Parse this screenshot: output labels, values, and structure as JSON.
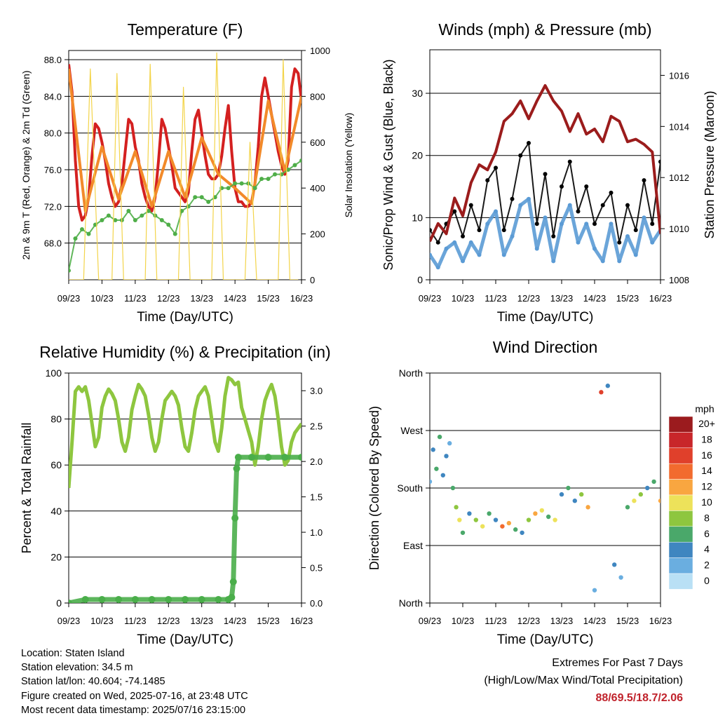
{
  "footer": {
    "location": "Location: Staten Island",
    "elevation": "Station elevation: 34.5 m",
    "latlon": "Station lat/lon: 40.604; -74.1485",
    "created": "Figure created on Wed, 2025-07-16, at 23:48 UTC",
    "recent": "Most recent data timestamp: 2025/07/16 23:15:00"
  },
  "extremes": {
    "line1": "Extremes For Past 7 Days",
    "line2": "(High/Low/Max Wind/Total Precipitation)",
    "values": "88/69.5/18.7/2.06",
    "color": "#c0222b"
  },
  "chart_data": [
    {
      "type": "line",
      "title": "Temperature (F)",
      "xlabel": "Time (Day/UTC)",
      "ylabel": "2m & 9m T (Red, Orange) & 2m Td (Green)",
      "ylabel_right": "Solar Insolation (Yellow)",
      "x_ticks": [
        "09/23",
        "10/23",
        "11/23",
        "12/23",
        "13/23",
        "14/23",
        "15/23",
        "16/23"
      ],
      "ylim": [
        64.0,
        89.0
      ],
      "y_ticks": [
        "68.0",
        "72.0",
        "76.0",
        "80.0",
        "84.0",
        "88.0"
      ],
      "y2lim": [
        0,
        1000
      ],
      "y2_ticks": [
        "0",
        "200",
        "400",
        "600",
        "800",
        "1000"
      ],
      "grid": "horizontal",
      "series": [
        {
          "color": "#d42020",
          "x": [
            0,
            0.1,
            0.2,
            0.3,
            0.4,
            0.5,
            0.6,
            0.7,
            0.8,
            0.9,
            1.0,
            1.1,
            1.2,
            1.3,
            1.4,
            1.5,
            1.6,
            1.7,
            1.8,
            1.9,
            2.0,
            2.1,
            2.2,
            2.3,
            2.4,
            2.5,
            2.6,
            2.7,
            2.8,
            2.9,
            3.0,
            3.1,
            3.2,
            3.3,
            3.4,
            3.5,
            3.6,
            3.7,
            3.8,
            3.9,
            4.0,
            4.1,
            4.2,
            4.3,
            4.4,
            4.5,
            4.6,
            4.7,
            4.8,
            4.9,
            5.0,
            5.1,
            5.2,
            5.3,
            5.4,
            5.5,
            5.6,
            5.7,
            5.8,
            5.9,
            6.0,
            6.1,
            6.2,
            6.3,
            6.4,
            6.5,
            6.6,
            6.7,
            6.8,
            6.9,
            7.0
          ],
          "values": [
            87.5,
            84.5,
            77.0,
            72.0,
            70.5,
            71.0,
            73.0,
            77.5,
            81.0,
            80.5,
            79.0,
            77.0,
            74.5,
            73.0,
            72.0,
            72.5,
            74.5,
            78.0,
            81.5,
            81.0,
            78.5,
            77.0,
            74.5,
            73.0,
            72.0,
            71.5,
            73.0,
            77.0,
            81.5,
            80.5,
            78.5,
            76.5,
            74.0,
            73.5,
            73.0,
            72.5,
            73.5,
            78.0,
            81.5,
            82.5,
            80.0,
            77.5,
            75.5,
            75.0,
            75.0,
            75.5,
            77.5,
            80.5,
            83.0,
            78.0,
            74.0,
            72.5,
            72.5,
            72.0,
            72.0,
            72.5,
            74.5,
            78.5,
            84.0,
            86.0,
            84.0,
            82.0,
            80.0,
            78.0,
            76.5,
            75.5,
            77.0,
            85.0,
            87.0,
            86.5,
            83.5
          ]
        },
        {
          "color": "#f28a2a",
          "x": [
            0,
            0.5,
            1.0,
            1.5,
            2.0,
            2.5,
            3.0,
            3.5,
            4.0,
            4.5,
            5.0,
            5.5,
            6.0,
            6.5,
            7.0
          ],
          "values": [
            87.0,
            71.5,
            78.5,
            72.8,
            78.0,
            72.0,
            78.0,
            73.0,
            79.5,
            75.5,
            74.0,
            72.3,
            83.5,
            75.8,
            84.0
          ]
        },
        {
          "color": "#4fae48",
          "x": [
            0,
            0.2,
            0.4,
            0.6,
            0.8,
            1.0,
            1.2,
            1.4,
            1.6,
            1.8,
            2.0,
            2.2,
            2.4,
            2.6,
            2.8,
            3.0,
            3.2,
            3.4,
            3.6,
            3.8,
            4.0,
            4.2,
            4.4,
            4.6,
            4.8,
            5.0,
            5.2,
            5.4,
            5.6,
            5.8,
            6.0,
            6.2,
            6.4,
            6.6,
            6.8,
            7.0
          ],
          "values": [
            65.0,
            68.5,
            69.5,
            69.0,
            70.0,
            70.5,
            71.0,
            70.5,
            70.5,
            71.5,
            70.5,
            71.0,
            71.5,
            71.0,
            70.5,
            70.0,
            69.0,
            71.5,
            72.0,
            73.0,
            73.0,
            72.5,
            73.0,
            74.0,
            74.0,
            74.5,
            74.5,
            74.5,
            74.0,
            75.0,
            75.0,
            75.5,
            75.5,
            76.0,
            76.5,
            77.0
          ]
        },
        {
          "color": "#f3d44a",
          "axis": "right",
          "x": [
            0,
            0.2,
            0.45,
            0.65,
            0.9,
            1.1,
            1.3,
            1.45,
            1.65,
            1.9,
            2.1,
            2.3,
            2.45,
            2.65,
            2.9,
            3.1,
            3.3,
            3.45,
            3.65,
            3.9,
            4.1,
            4.3,
            4.45,
            4.65,
            4.9,
            5.1,
            5.3,
            5.45,
            5.65,
            5.9,
            6.1,
            6.3,
            6.45,
            6.65,
            6.9
          ],
          "values": [
            0,
            0,
            0,
            920,
            0,
            0,
            0,
            900,
            0,
            0,
            0,
            0,
            940,
            0,
            0,
            0,
            0,
            840,
            0,
            0,
            0,
            0,
            990,
            0,
            0,
            0,
            0,
            600,
            0,
            0,
            0,
            0,
            960,
            0,
            0
          ]
        }
      ]
    },
    {
      "type": "scatter",
      "title": "Winds (mph) & Pressure (mb)",
      "xlabel": "Time (Day/UTC)",
      "ylabel": "Sonic/Prop Wind & Gust (Blue, Black)",
      "ylabel_right": "Station Pressure (Maroon)",
      "x_ticks": [
        "09/23",
        "10/23",
        "11/23",
        "12/23",
        "13/23",
        "14/23",
        "15/23",
        "16/23"
      ],
      "ylim": [
        0,
        37
      ],
      "y_ticks": [
        "0",
        "10",
        "20",
        "30"
      ],
      "y2lim": [
        1008,
        1017
      ],
      "y2_ticks": [
        "1008",
        "1010",
        "1012",
        "1014",
        "1016"
      ],
      "grid": "horizontal",
      "series": [
        {
          "color": "#5b9bd5",
          "x": [
            0,
            0.25,
            0.5,
            0.75,
            1.0,
            1.25,
            1.5,
            1.75,
            2.0,
            2.25,
            2.5,
            2.75,
            3.0,
            3.25,
            3.5,
            3.75,
            4.0,
            4.25,
            4.5,
            4.75,
            5.0,
            5.25,
            5.5,
            5.75,
            6.0,
            6.25,
            6.5,
            6.75,
            7.0
          ],
          "values": [
            4,
            2,
            5,
            6,
            3,
            6,
            4,
            9,
            11,
            4,
            7,
            12,
            13,
            5,
            10,
            3,
            9,
            12,
            6,
            9,
            5,
            3,
            9,
            3,
            7,
            4,
            10,
            6,
            8
          ]
        },
        {
          "color": "#000000",
          "x": [
            0,
            0.25,
            0.5,
            0.75,
            1.0,
            1.25,
            1.5,
            1.75,
            2.0,
            2.25,
            2.5,
            2.75,
            3.0,
            3.25,
            3.5,
            3.75,
            4.0,
            4.25,
            4.5,
            4.75,
            5.0,
            5.25,
            5.5,
            5.75,
            6.0,
            6.25,
            6.5,
            6.75,
            7.0
          ],
          "values": [
            8,
            6,
            9,
            11,
            7,
            12,
            8,
            16,
            18,
            8,
            13,
            20,
            22,
            9,
            17,
            7,
            15,
            19,
            11,
            15,
            9,
            12,
            14,
            6,
            12,
            8,
            16,
            9,
            19
          ]
        },
        {
          "color": "#9b1c1c",
          "axis": "right",
          "x": [
            0,
            0.25,
            0.5,
            0.75,
            1.0,
            1.25,
            1.5,
            1.75,
            2.0,
            2.25,
            2.5,
            2.75,
            3.0,
            3.25,
            3.5,
            3.75,
            4.0,
            4.25,
            4.5,
            4.75,
            5.0,
            5.25,
            5.5,
            5.75,
            6.0,
            6.25,
            6.5,
            6.75,
            7.0
          ],
          "values": [
            1009.5,
            1010.2,
            1009.8,
            1011.2,
            1010.5,
            1011.8,
            1012.5,
            1012.3,
            1013.0,
            1014.2,
            1014.5,
            1015.0,
            1014.3,
            1015.0,
            1015.6,
            1015.0,
            1014.6,
            1013.8,
            1014.5,
            1013.7,
            1013.9,
            1013.4,
            1014.4,
            1014.2,
            1013.4,
            1013.5,
            1013.3,
            1013.0,
            1009.8
          ]
        }
      ]
    },
    {
      "type": "line",
      "title": "Relative Humidity (%) & Precipitation (in)",
      "xlabel": "Time (Day/UTC)",
      "ylabel": "Percent & Total Rainfall",
      "x_ticks": [
        "09/23",
        "10/23",
        "11/23",
        "12/23",
        "13/23",
        "14/23",
        "15/23",
        "16/23"
      ],
      "ylim": [
        0,
        100
      ],
      "y_ticks": [
        "0",
        "20",
        "40",
        "60",
        "80",
        "100"
      ],
      "y2lim": [
        0,
        3.25
      ],
      "y2_ticks": [
        "0.0",
        "0.5",
        "1.0",
        "1.5",
        "2.0",
        "2.5",
        "3.0"
      ],
      "grid": "horizontal",
      "series": [
        {
          "color": "#8ec63f",
          "x": [
            0,
            0.1,
            0.2,
            0.3,
            0.4,
            0.5,
            0.6,
            0.7,
            0.8,
            0.9,
            1.0,
            1.1,
            1.2,
            1.3,
            1.4,
            1.5,
            1.6,
            1.7,
            1.8,
            1.9,
            2.0,
            2.1,
            2.2,
            2.3,
            2.4,
            2.5,
            2.6,
            2.7,
            2.8,
            2.9,
            3.0,
            3.1,
            3.2,
            3.3,
            3.4,
            3.5,
            3.6,
            3.7,
            3.8,
            3.9,
            4.0,
            4.1,
            4.2,
            4.3,
            4.4,
            4.5,
            4.6,
            4.7,
            4.8,
            4.9,
            5.0,
            5.1,
            5.2,
            5.3,
            5.4,
            5.5,
            5.6,
            5.7,
            5.8,
            5.9,
            6.0,
            6.1,
            6.2,
            6.3,
            6.4,
            6.5,
            6.6,
            6.7,
            6.8,
            6.9,
            7.0
          ],
          "values": [
            50,
            70,
            92,
            94,
            92,
            94,
            88,
            78,
            68,
            72,
            85,
            90,
            93,
            91,
            88,
            80,
            70,
            66,
            72,
            84,
            90,
            95,
            93,
            90,
            82,
            72,
            66,
            70,
            80,
            88,
            90,
            92,
            90,
            86,
            76,
            68,
            66,
            74,
            84,
            90,
            92,
            94,
            90,
            80,
            70,
            66,
            76,
            90,
            98,
            97,
            95,
            96,
            85,
            80,
            75,
            70,
            60,
            68,
            80,
            88,
            92,
            95,
            90,
            80,
            68,
            60,
            62,
            70,
            74,
            76,
            78
          ]
        },
        {
          "color": "#4aae4a",
          "axis": "right",
          "x": [
            0,
            0.5,
            1.0,
            1.5,
            2.0,
            2.5,
            3.0,
            3.5,
            4.0,
            4.5,
            4.8,
            4.9,
            4.95,
            5.0,
            5.05,
            5.1,
            5.5,
            6.0,
            6.5,
            7.0
          ],
          "values": [
            0.0,
            0.05,
            0.05,
            0.05,
            0.05,
            0.05,
            0.05,
            0.05,
            0.05,
            0.05,
            0.05,
            0.08,
            0.3,
            1.2,
            1.9,
            2.06,
            2.06,
            2.06,
            2.06,
            2.06
          ]
        }
      ]
    },
    {
      "type": "scatter",
      "title": "Wind Direction",
      "xlabel": "Time (Day/UTC)",
      "ylabel": "Direction (Colored By Speed)",
      "x_ticks": [
        "09/23",
        "10/23",
        "11/23",
        "12/23",
        "13/23",
        "14/23",
        "15/23",
        "16/23"
      ],
      "y_ticks": [
        "North",
        "East",
        "South",
        "West",
        "North"
      ],
      "ylim": [
        0,
        360
      ],
      "grid": "horizontal",
      "colorbar": {
        "title": "mph",
        "labels": [
          "20+",
          "18",
          "16",
          "14",
          "12",
          "10",
          "8",
          "6",
          "4",
          "2",
          "0"
        ],
        "colors": [
          "#9b1b1e",
          "#c8262a",
          "#e0402b",
          "#f26b2e",
          "#f9a640",
          "#ede25a",
          "#8ec63f",
          "#4aa86a",
          "#3f86c0",
          "#6aaee0",
          "#b9e0f5"
        ]
      },
      "series": [
        {
          "name": "",
          "x": [
            0.0,
            0.1,
            0.2,
            0.3,
            0.4,
            0.5,
            0.6,
            0.7,
            0.8,
            0.9,
            1.0,
            1.2,
            1.4,
            1.6,
            1.8,
            2.0,
            2.2,
            2.4,
            2.6,
            2.8,
            3.0,
            3.2,
            3.4,
            3.6,
            3.8,
            4.0,
            4.2,
            4.4,
            4.6,
            4.8,
            5.0,
            5.2,
            5.4,
            5.6,
            5.8,
            6.0,
            6.2,
            6.4,
            6.6,
            6.8,
            7.0
          ],
          "values": [
            190,
            240,
            210,
            260,
            200,
            230,
            250,
            180,
            150,
            130,
            110,
            140,
            130,
            120,
            140,
            130,
            120,
            125,
            115,
            110,
            130,
            140,
            145,
            135,
            130,
            170,
            180,
            160,
            170,
            150,
            20,
            330,
            340,
            60,
            40,
            150,
            160,
            170,
            180,
            190,
            160
          ],
          "speeds": [
            2,
            3,
            5,
            6,
            3,
            4,
            2,
            6,
            8,
            10,
            5,
            4,
            8,
            10,
            6,
            4,
            14,
            12,
            6,
            3,
            8,
            12,
            10,
            6,
            9,
            4,
            6,
            3,
            8,
            12,
            2,
            15,
            4,
            3,
            2,
            6,
            10,
            8,
            4,
            5,
            12
          ]
        }
      ]
    }
  ]
}
